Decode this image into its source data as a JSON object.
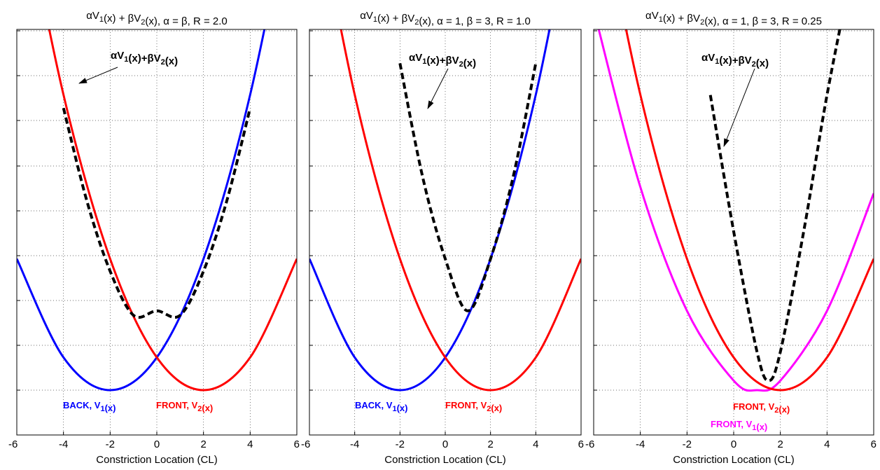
{
  "chart_data": [
    {
      "type": "line",
      "title": "αV1(x) + βV2(x), α = β, R = 2.0",
      "xlabel": "Constriction Location (CL)",
      "xlim": [
        -6,
        6
      ],
      "ylim": [
        0,
        1
      ],
      "xticks": [
        "-6",
        "-4",
        "-2",
        "0",
        "2",
        "4",
        "6"
      ],
      "grid": true,
      "annotation": "αV1(x)+βV2(x)",
      "curve_labels": [
        {
          "text": "BACK, V1(x)",
          "color": "#0000ff"
        },
        {
          "text": "FRONT, V2(x)",
          "color": "#ff0000"
        }
      ],
      "series": [
        {
          "color": "#0000ff",
          "style": "solid",
          "x": [
            -6,
            -4,
            -2,
            0,
            2,
            4,
            6
          ],
          "y": [
            0.414,
            0.103,
            0.0,
            0.103,
            0.414,
            0.931,
            1.655
          ]
        },
        {
          "color": "#ff0000",
          "style": "solid",
          "x": [
            -6,
            -4,
            -2,
            0,
            2,
            4,
            6
          ],
          "y": [
            1.655,
            0.931,
            0.414,
            0.103,
            0.0,
            0.103,
            0.414
          ]
        },
        {
          "color": "#000000",
          "style": "dashed",
          "x": [
            -4,
            -3,
            -2,
            -1,
            0,
            1,
            2,
            3,
            4
          ],
          "y": [
            0.889,
            0.597,
            0.375,
            0.236,
            0.25,
            0.236,
            0.375,
            0.597,
            0.889
          ]
        }
      ]
    },
    {
      "type": "line",
      "title": "αV1(x) + βV2(x), α = 1, β = 3, R = 1.0",
      "xlabel": "Constriction Location (CL)",
      "xlim": [
        -6,
        6
      ],
      "ylim": [
        0,
        1
      ],
      "xticks": [
        "-6",
        "-4",
        "-2",
        "0",
        "2",
        "4",
        "6"
      ],
      "grid": true,
      "annotation": "αV1(x)+βV2(x)",
      "curve_labels": [
        {
          "text": "BACK, V1(x)",
          "color": "#0000ff"
        },
        {
          "text": "FRONT, V2(x)",
          "color": "#ff0000"
        }
      ],
      "series": [
        {
          "color": "#0000ff",
          "style": "solid",
          "x": [
            -6,
            -4,
            -2,
            0,
            2,
            4,
            6
          ],
          "y": [
            0.414,
            0.103,
            0.0,
            0.103,
            0.414,
            0.931,
            1.655
          ]
        },
        {
          "color": "#ff0000",
          "style": "solid",
          "x": [
            -6,
            -4,
            -2,
            0,
            2,
            4,
            6
          ],
          "y": [
            1.655,
            0.931,
            0.414,
            0.103,
            0.0,
            0.103,
            0.414
          ]
        },
        {
          "color": "#000000",
          "style": "dashed",
          "x": [
            -2,
            -1,
            0,
            1,
            2,
            3,
            4
          ],
          "y": [
            1.03,
            0.672,
            0.414,
            0.25,
            0.414,
            0.672,
            1.03
          ]
        }
      ]
    },
    {
      "type": "line",
      "title": "αV1(x) + βV2(x), α = 1, β = 3, R = 0.25",
      "xlabel": "Constriction Location (CL)",
      "xlim": [
        -6,
        6
      ],
      "ylim": [
        0,
        1
      ],
      "xticks": [
        "-6",
        "-4",
        "-2",
        "0",
        "2",
        "4",
        "6"
      ],
      "grid": true,
      "annotation": "αV1(x)+βV2(x)",
      "curve_labels": [
        {
          "text": "FRONT, V2(x)",
          "color": "#ff0000"
        },
        {
          "text": "FRONT, V1(x)",
          "color": "#ff00ff"
        }
      ],
      "series": [
        {
          "color": "#ff00ff",
          "style": "solid",
          "x": [
            -6,
            -4,
            -2,
            0,
            1,
            2,
            4,
            6
          ],
          "y": [
            1.2,
            0.64,
            0.25,
            0.03,
            0.0,
            0.03,
            0.25,
            0.62
          ]
        },
        {
          "color": "#ff0000",
          "style": "solid",
          "x": [
            -6,
            -4,
            -2,
            0,
            2,
            4,
            6
          ],
          "y": [
            1.655,
            0.931,
            0.414,
            0.103,
            0.0,
            0.103,
            0.414
          ]
        },
        {
          "color": "#000000",
          "style": "dashed",
          "x": [
            -1,
            0,
            1,
            1.5,
            2,
            3,
            4,
            5
          ],
          "y": [
            0.93,
            0.5,
            0.121,
            0.03,
            0.121,
            0.5,
            0.93,
            1.3
          ]
        }
      ]
    }
  ]
}
